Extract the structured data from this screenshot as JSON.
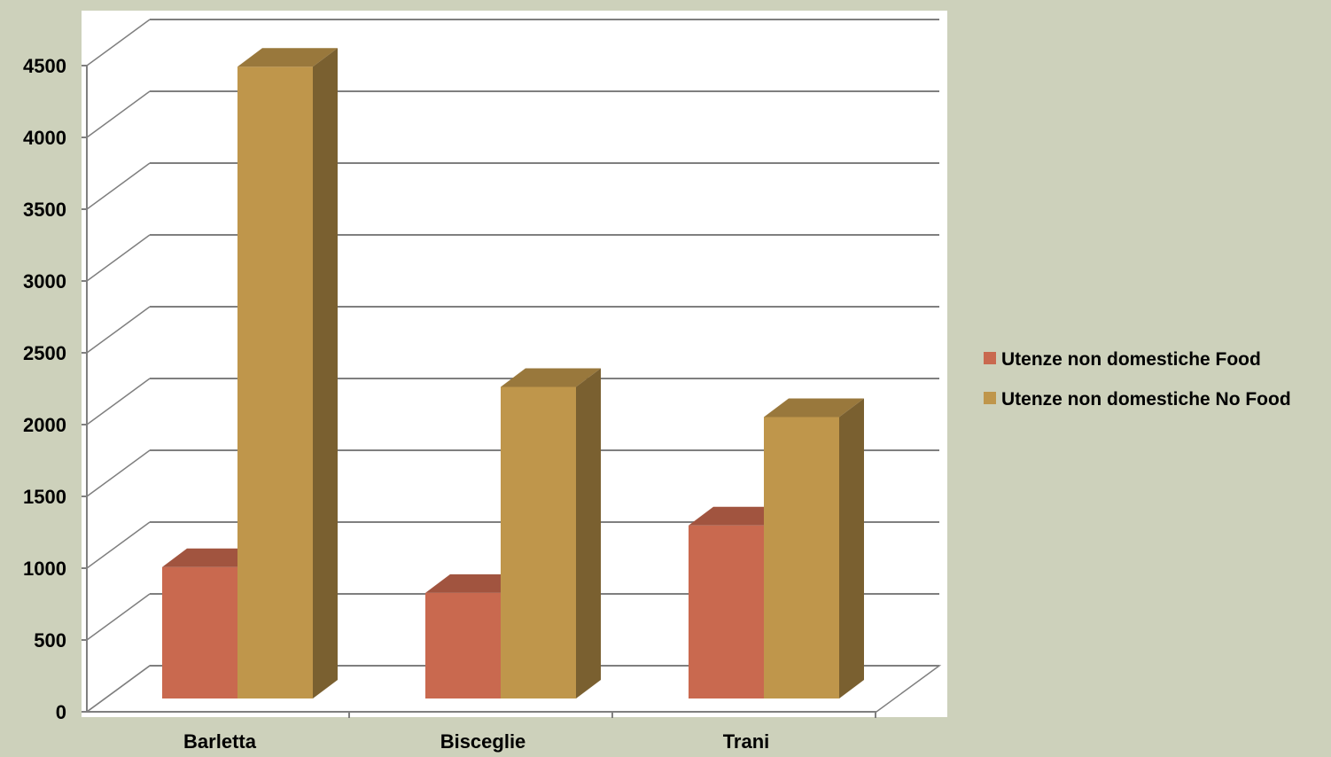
{
  "chart_data": {
    "type": "bar",
    "categories": [
      "Barletta",
      "Bisceglie",
      "Trani"
    ],
    "series": [
      {
        "name": "Utenze non domestiche Food",
        "values": [
          915,
          735,
          1205
        ],
        "color": "#c9694f"
      },
      {
        "name": "Utenze non domestiche No Food",
        "values": [
          4400,
          2170,
          1960
        ],
        "color": "#bf964b"
      }
    ],
    "y_ticks": [
      "0",
      "500",
      "1000",
      "1500",
      "2000",
      "2500",
      "3000",
      "3500",
      "4000",
      "4500"
    ],
    "ylim": [
      0,
      4500
    ],
    "ytick_step": 500,
    "grid": true,
    "legend_position": "right",
    "colors": {
      "background": "#cdd1bb",
      "plot_area": "#ffffff",
      "gridline": "#7f7f7f"
    }
  }
}
